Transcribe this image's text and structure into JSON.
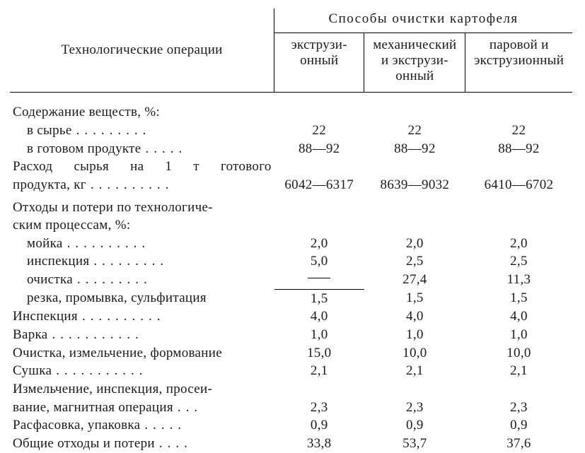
{
  "header": {
    "row_label": "Технологические операции",
    "super": "Способы очистки картофеля",
    "cols": [
      [
        "экструзи-",
        "онный"
      ],
      [
        "механический",
        "и экструзи-",
        "онный"
      ],
      [
        "паровой и",
        "экструзионный"
      ]
    ]
  },
  "sections": {
    "contents": {
      "title": "Содержание веществ, %:",
      "raw_label": "в сырье",
      "raw": [
        "22",
        "22",
        "22"
      ],
      "product_label": "в готовом продукте",
      "product": [
        "88—92",
        "88—92",
        "88—92"
      ]
    },
    "consumption": {
      "line1": "Расход сырья на 1 т готового",
      "line2": "продукта, кг",
      "vals": [
        "6042—6317",
        "8639—9032",
        "6410—6702"
      ]
    },
    "waste": {
      "line1": "Отходы и потери по технологиче-",
      "line2": "ским процессам, %:",
      "wash_label": "мойка",
      "wash": [
        "2,0",
        "2,0",
        "2,0"
      ],
      "insp_label": "инспекция",
      "insp": [
        "5,0",
        "2,5",
        "2,5"
      ],
      "clean_label": "очистка",
      "clean": [
        "—",
        "27,4",
        "11,3"
      ],
      "cut_label": "резка, промывка, сульфитация",
      "cut": [
        "1,5",
        "1,5",
        "1,5"
      ]
    },
    "rows": {
      "inspection_label": "Инспекция",
      "inspection": [
        "4,0",
        "4,0",
        "4,0"
      ],
      "boil_label": "Варка",
      "boil": [
        "1,0",
        "1,0",
        "1,0"
      ],
      "grind_label": "Очистка, измельчение, формование",
      "grind": [
        "15,0",
        "10,0",
        "10,0"
      ],
      "dry_label": "Сушка",
      "dry": [
        "2,1",
        "2,1",
        "2,1"
      ],
      "mill_l1": "Измельчение, инспекция, просеи-",
      "mill_l2": "вание, магнитная операция",
      "mill": [
        "2,3",
        "2,3",
        "2,3"
      ],
      "pack_label": "Расфасовка, упаковка",
      "pack": [
        "0,9",
        "0,9",
        "0,9"
      ],
      "total_label": "Общие отходы и потери",
      "total": [
        "33,8",
        "53,7",
        "37,6"
      ]
    }
  }
}
